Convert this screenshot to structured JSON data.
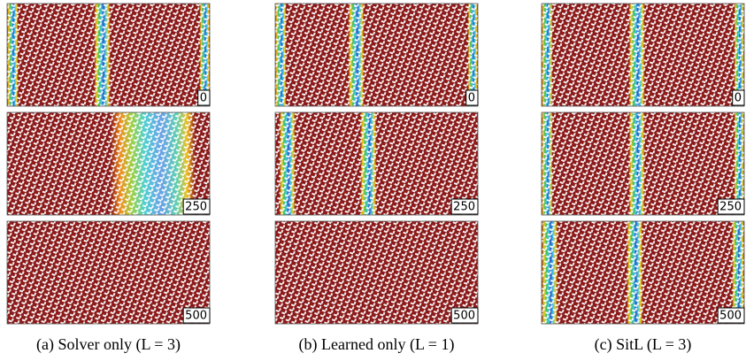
{
  "columns": [
    {
      "caption": "(a) Solver only (L = 3)",
      "panels": [
        {
          "label": 0
        },
        {
          "label": 250
        },
        {
          "label": 500
        }
      ]
    },
    {
      "caption": "(b) Learned only (L = 1)",
      "panels": [
        {
          "label": 0
        },
        {
          "label": 250
        },
        {
          "label": 500
        }
      ]
    },
    {
      "caption": "(c) SitL (L = 3)",
      "panels": [
        {
          "label": 0
        },
        {
          "label": 250
        },
        {
          "label": 500
        }
      ]
    }
  ]
}
